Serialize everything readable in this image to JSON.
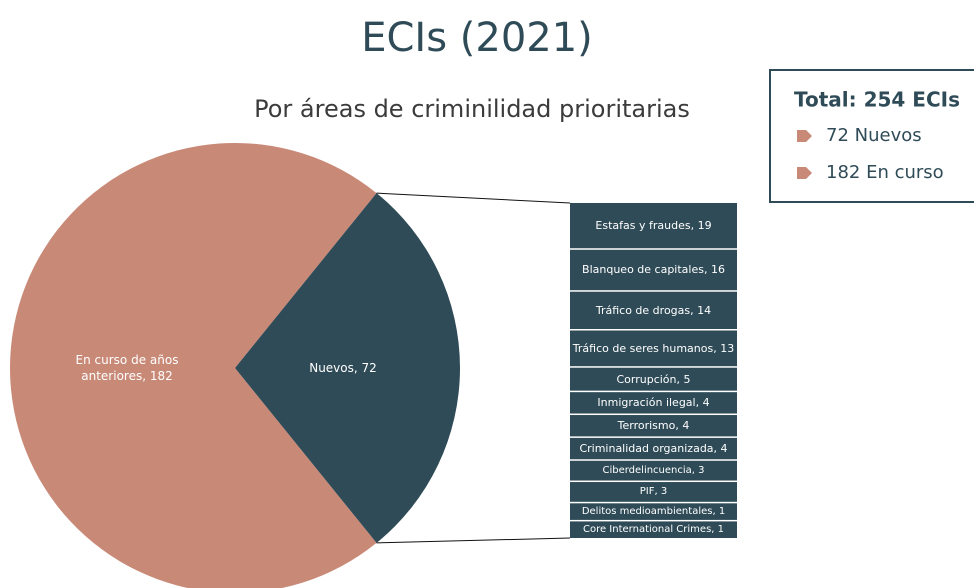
{
  "chart_data": [
    {
      "type": "pie",
      "title": "ECIs (2021)",
      "subtitle": "Por áreas de criminilidad prioritarias",
      "categories": [
        "En curso de años anteriores",
        "Nuevos"
      ],
      "values": [
        182,
        72
      ],
      "value_labels": [
        "En curso de años anteriores, 182",
        "Nuevos, 72"
      ],
      "colors": [
        "#c98977",
        "#2f4b57"
      ]
    },
    {
      "type": "bar",
      "stacked": true,
      "categories": [
        "Estafas y fraudes",
        "Blanqueo de capitales",
        "Tráfico de drogas",
        "Tráfico de seres humanos",
        "Corrupción",
        "Inmigración ilegal",
        "Terrorismo",
        "Criminalidad organizada",
        "Ciberdelincuencia",
        "PIF",
        "Delitos medioambientales",
        "Core International Crimes"
      ],
      "values": [
        19,
        16,
        14,
        13,
        5,
        4,
        4,
        4,
        3,
        3,
        1,
        1
      ],
      "value_labels": [
        "Estafas y fraudes, 19",
        "Blanqueo de capitales, 16",
        "Tráfico de drogas, 14",
        "Tráfico de seres humanos, 13",
        "Corrupción, 5",
        "Inmigración ilegal, 4",
        "Terrorismo, 4",
        "Criminalidad organizada, 4",
        "Ciberdelincuencia, 3",
        "PIF, 3",
        "Delitos medioambientales, 1",
        "Core International Crimes, 1"
      ],
      "color": "#2f4b57"
    }
  ],
  "summary": {
    "title": "Total: 254 ECIs",
    "items": [
      "72 Nuevos",
      "182 En curso"
    ],
    "marker_color": "#c98977"
  }
}
